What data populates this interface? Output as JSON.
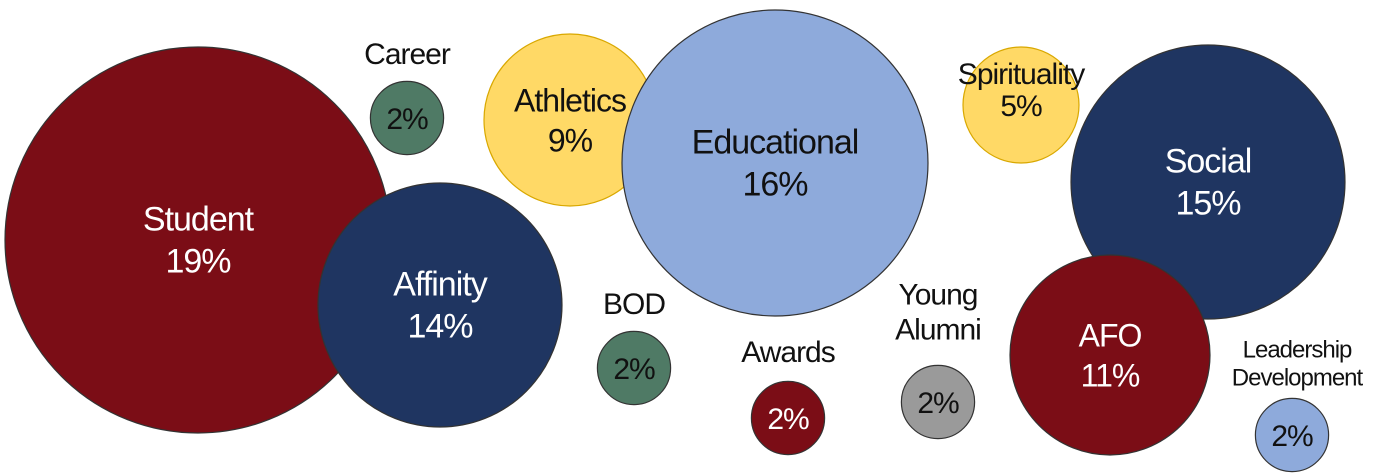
{
  "chart_data": {
    "type": "bubble",
    "categories": [
      "Student",
      "Career",
      "Athletics",
      "Educational",
      "Spirituality",
      "Social",
      "Affinity",
      "BOD",
      "Awards",
      "Young\nAlumni",
      "AFO",
      "Leadership\nDevelopment"
    ],
    "values": [
      19,
      2,
      9,
      16,
      5,
      15,
      14,
      2,
      2,
      2,
      11,
      2
    ],
    "value_labels": [
      "19%",
      "2%",
      "9%",
      "16%",
      "5%",
      "15%",
      "14%",
      "2%",
      "2%",
      "2%",
      "11%",
      "2%"
    ],
    "colors": [
      "#7b0d16",
      "#4f7a65",
      "#ffd966",
      "#8eaadb",
      "#ffd966",
      "#1f3561",
      "#1f3561",
      "#4f7a65",
      "#7b0d16",
      "#9a9a9a",
      "#7b0d16",
      "#8eaadb"
    ]
  }
}
